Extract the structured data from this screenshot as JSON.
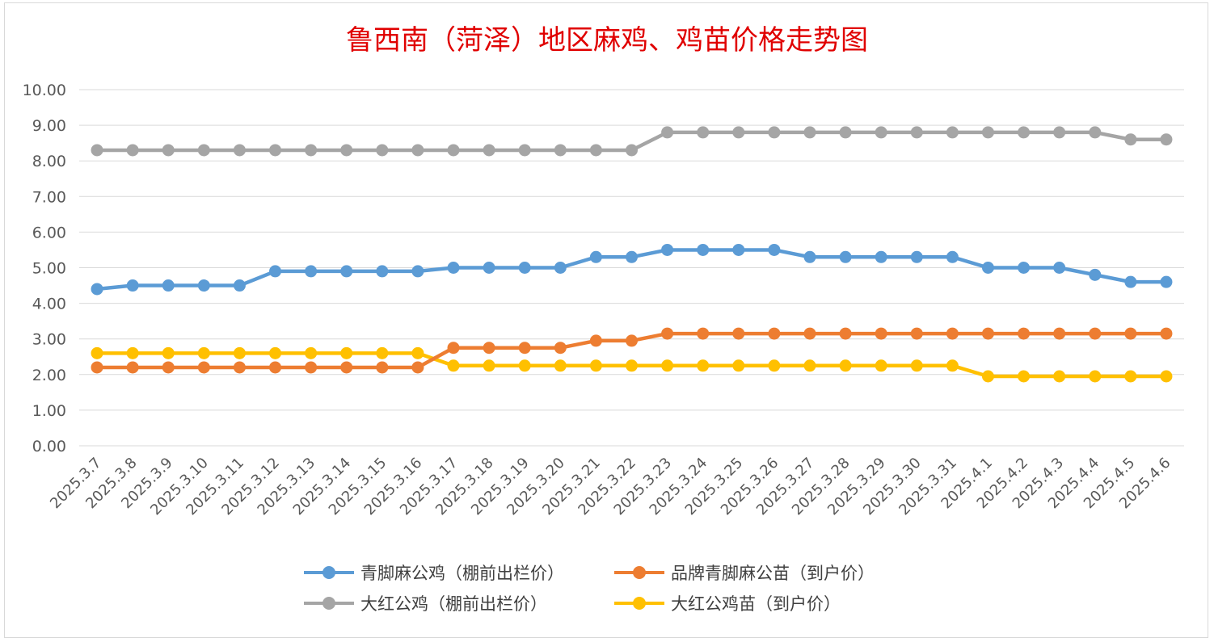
{
  "chart_data": {
    "type": "line",
    "title": "鲁西南（菏泽）地区麻鸡、鸡苗价格走势图",
    "xlabel": "",
    "ylabel": "",
    "ylim": [
      0,
      10
    ],
    "yticks": [
      "0.00",
      "1.00",
      "2.00",
      "3.00",
      "4.00",
      "5.00",
      "6.00",
      "7.00",
      "8.00",
      "9.00",
      "10.00"
    ],
    "grid": true,
    "legend_position": "bottom",
    "categories": [
      "2025.3.7",
      "2025.3.8",
      "2025.3.9",
      "2025.3.10",
      "2025.3.11",
      "2025.3.12",
      "2025.3.13",
      "2025.3.14",
      "2025.3.15",
      "2025.3.16",
      "2025.3.17",
      "2025.3.18",
      "2025.3.19",
      "2025.3.20",
      "2025.3.21",
      "2025.3.22",
      "2025.3.23",
      "2025.3.24",
      "2025.3.25",
      "2025.3.26",
      "2025.3.27",
      "2025.3.28",
      "2025.3.29",
      "2025.3.30",
      "2025.3.31",
      "2025.4.1",
      "2025.4.2",
      "2025.4.3",
      "2025.4.4",
      "2025.4.5",
      "2025.4.6"
    ],
    "series": [
      {
        "name": "青脚麻公鸡（棚前出栏价）",
        "color": "#5b9bd5",
        "values": [
          4.4,
          4.5,
          4.5,
          4.5,
          4.5,
          4.9,
          4.9,
          4.9,
          4.9,
          4.9,
          5.0,
          5.0,
          5.0,
          5.0,
          5.3,
          5.3,
          5.5,
          5.5,
          5.5,
          5.5,
          5.3,
          5.3,
          5.3,
          5.3,
          5.3,
          5.0,
          5.0,
          5.0,
          4.8,
          4.6,
          4.6
        ]
      },
      {
        "name": "品牌青脚麻公苗（到户价）",
        "color": "#ed7d31",
        "values": [
          2.2,
          2.2,
          2.2,
          2.2,
          2.2,
          2.2,
          2.2,
          2.2,
          2.2,
          2.2,
          2.75,
          2.75,
          2.75,
          2.75,
          2.95,
          2.95,
          3.15,
          3.15,
          3.15,
          3.15,
          3.15,
          3.15,
          3.15,
          3.15,
          3.15,
          3.15,
          3.15,
          3.15,
          3.15,
          3.15,
          3.15
        ]
      },
      {
        "name": "大红公鸡（棚前出栏价）",
        "color": "#a5a5a5",
        "values": [
          8.3,
          8.3,
          8.3,
          8.3,
          8.3,
          8.3,
          8.3,
          8.3,
          8.3,
          8.3,
          8.3,
          8.3,
          8.3,
          8.3,
          8.3,
          8.3,
          8.8,
          8.8,
          8.8,
          8.8,
          8.8,
          8.8,
          8.8,
          8.8,
          8.8,
          8.8,
          8.8,
          8.8,
          8.8,
          8.6,
          8.6
        ]
      },
      {
        "name": "大红公鸡苗（到户价）",
        "color": "#ffc000",
        "values": [
          2.6,
          2.6,
          2.6,
          2.6,
          2.6,
          2.6,
          2.6,
          2.6,
          2.6,
          2.6,
          2.25,
          2.25,
          2.25,
          2.25,
          2.25,
          2.25,
          2.25,
          2.25,
          2.25,
          2.25,
          2.25,
          2.25,
          2.25,
          2.25,
          2.25,
          1.95,
          1.95,
          1.95,
          1.95,
          1.95,
          1.95
        ]
      }
    ]
  }
}
